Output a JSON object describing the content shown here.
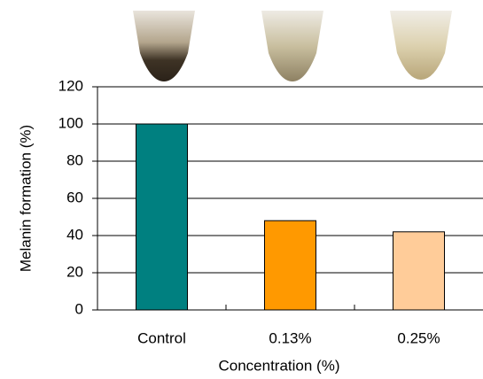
{
  "chart_data": {
    "type": "bar",
    "categories": [
      "Control",
      "0.13%",
      "0.25%"
    ],
    "values": [
      100,
      48,
      42
    ],
    "colors": [
      "#008080",
      "#ff9900",
      "#ffcc99"
    ],
    "ylabel": "Melanin formation (%)",
    "xlabel": "Concentration (%)",
    "ylim": [
      0,
      120
    ],
    "yticks": [
      0,
      20,
      40,
      60,
      80,
      100,
      120
    ],
    "grid": true
  }
}
